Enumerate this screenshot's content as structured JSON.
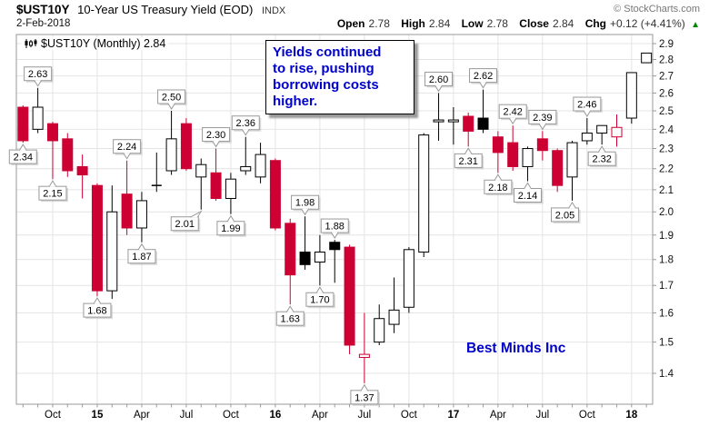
{
  "header": {
    "symbol": "$UST10Y",
    "title": "10-Year US Treasury Yield (EOD)",
    "exchange": "INDX",
    "copyright": "© StockCharts.com",
    "date": "2-Feb-2018",
    "quote": {
      "open_label": "Open",
      "open_value": "2.78",
      "high_label": "High",
      "high_value": "2.84",
      "low_label": "Low",
      "low_value": "2.78",
      "close_label": "Close",
      "close_value": "2.84",
      "chg_label": "Chg",
      "chg_value": "+0.12 (+4.41%)",
      "direction_icon": "▲"
    }
  },
  "legend": {
    "text": "$UST10Y (Monthly) 2.84"
  },
  "annotation": {
    "lines": [
      "Yields continued",
      "to rise, pushing",
      "borrowing costs",
      "higher."
    ]
  },
  "watermark": "Best Minds Inc",
  "colors": {
    "down": "#cc0033",
    "up_border": "#000000",
    "up_fill": "#ffffff",
    "up_filled": "#000000",
    "grid": "#e4e4e4",
    "frame": "#999999",
    "axis_text": "#111111",
    "callout_border": "#999999",
    "annotation_text": "#0000cc",
    "watermark_text": "#0000cc",
    "chg_up": "#008800"
  },
  "chart_data": {
    "type": "candlestick",
    "symbol": "$UST10Y",
    "timeframe": "Monthly",
    "scale": "log",
    "ylim": [
      1.31,
      2.96
    ],
    "y_ticks": [
      2.9,
      2.8,
      2.7,
      2.6,
      2.5,
      2.4,
      2.3,
      2.2,
      2.1,
      2.0,
      1.9,
      1.8,
      1.7,
      1.6,
      1.5,
      1.4
    ],
    "x_labels": [
      {
        "i": 2,
        "text": "Oct",
        "bold": false
      },
      {
        "i": 5,
        "text": "15",
        "bold": true
      },
      {
        "i": 8,
        "text": "Apr",
        "bold": false
      },
      {
        "i": 11,
        "text": "Jul",
        "bold": false
      },
      {
        "i": 14,
        "text": "Oct",
        "bold": false
      },
      {
        "i": 17,
        "text": "16",
        "bold": true
      },
      {
        "i": 20,
        "text": "Apr",
        "bold": false
      },
      {
        "i": 23,
        "text": "Jul",
        "bold": false
      },
      {
        "i": 26,
        "text": "Oct",
        "bold": false
      },
      {
        "i": 29,
        "text": "17",
        "bold": true
      },
      {
        "i": 32,
        "text": "Apr",
        "bold": false
      },
      {
        "i": 35,
        "text": "Jul",
        "bold": false
      },
      {
        "i": 38,
        "text": "Oct",
        "bold": false
      },
      {
        "i": 41,
        "text": "18",
        "bold": true
      }
    ],
    "candles": [
      {
        "month": "Aug 2014",
        "o": 2.52,
        "h": 2.53,
        "l": 2.33,
        "c": 2.34,
        "type": "down",
        "callout": "2.34",
        "side": "below"
      },
      {
        "month": "Sep 2014",
        "o": 2.4,
        "h": 2.63,
        "l": 2.38,
        "c": 2.52,
        "type": "up",
        "callout": "2.63",
        "side": "above"
      },
      {
        "month": "Oct 2014",
        "o": 2.43,
        "h": 2.44,
        "l": 2.15,
        "c": 2.34,
        "type": "down",
        "callout": "2.15",
        "side": "below"
      },
      {
        "month": "Nov 2014",
        "o": 2.35,
        "h": 2.38,
        "l": 2.16,
        "c": 2.19,
        "type": "down"
      },
      {
        "month": "Dec 2014",
        "o": 2.21,
        "h": 2.27,
        "l": 2.06,
        "c": 2.17,
        "type": "down"
      },
      {
        "month": "Jan 2015",
        "o": 2.12,
        "h": 2.13,
        "l": 1.66,
        "c": 1.68,
        "type": "down",
        "callout": "1.68",
        "side": "below"
      },
      {
        "month": "Feb 2015",
        "o": 1.68,
        "h": 2.12,
        "l": 1.65,
        "c": 2.0,
        "type": "up"
      },
      {
        "month": "Mar 2015",
        "o": 2.08,
        "h": 2.24,
        "l": 1.9,
        "c": 1.93,
        "type": "down",
        "callout": "2.24",
        "side": "above"
      },
      {
        "month": "Apr 2015",
        "o": 1.93,
        "h": 2.09,
        "l": 1.87,
        "c": 2.05,
        "type": "up",
        "callout": "1.87",
        "side": "below"
      },
      {
        "month": "May 2015",
        "o": 2.12,
        "h": 2.28,
        "l": 2.09,
        "c": 2.12,
        "type": "up"
      },
      {
        "month": "Jun 2015",
        "o": 2.19,
        "h": 2.5,
        "l": 2.17,
        "c": 2.35,
        "type": "up",
        "callout": "2.50",
        "side": "above"
      },
      {
        "month": "Jul 2015",
        "o": 2.43,
        "h": 2.46,
        "l": 2.19,
        "c": 2.2,
        "type": "down"
      },
      {
        "month": "Aug 2015",
        "o": 2.16,
        "h": 2.25,
        "l": 2.01,
        "c": 2.22,
        "type": "up",
        "callout": "2.01",
        "side": "below",
        "cdx": -18
      },
      {
        "month": "Sep 2015",
        "o": 2.18,
        "h": 2.3,
        "l": 2.05,
        "c": 2.06,
        "type": "down",
        "callout": "2.30",
        "side": "above"
      },
      {
        "month": "Oct 2015",
        "o": 2.06,
        "h": 2.18,
        "l": 1.99,
        "c": 2.15,
        "type": "up",
        "callout": "1.99",
        "side": "below"
      },
      {
        "month": "Nov 2015",
        "o": 2.19,
        "h": 2.36,
        "l": 2.17,
        "c": 2.21,
        "type": "up",
        "callout": "2.36",
        "side": "above"
      },
      {
        "month": "Dec 2015",
        "o": 2.16,
        "h": 2.33,
        "l": 2.13,
        "c": 2.27,
        "type": "up"
      },
      {
        "month": "Jan 2016",
        "o": 2.24,
        "h": 2.25,
        "l": 1.92,
        "c": 1.93,
        "type": "down"
      },
      {
        "month": "Feb 2016",
        "o": 1.95,
        "h": 1.97,
        "l": 1.63,
        "c": 1.74,
        "type": "down",
        "callout": "1.63",
        "side": "below"
      },
      {
        "month": "Mar 2016",
        "o": 1.83,
        "h": 1.98,
        "l": 1.76,
        "c": 1.78,
        "type": "up-filled",
        "callout": "1.98",
        "side": "above"
      },
      {
        "month": "Apr 2016",
        "o": 1.79,
        "h": 1.9,
        "l": 1.7,
        "c": 1.83,
        "type": "up",
        "callout": "1.70",
        "side": "below"
      },
      {
        "month": "May 2016",
        "o": 1.87,
        "h": 1.88,
        "l": 1.71,
        "c": 1.84,
        "type": "up-filled",
        "callout": "1.88",
        "side": "above"
      },
      {
        "month": "Jun 2016",
        "o": 1.85,
        "h": 1.86,
        "l": 1.46,
        "c": 1.49,
        "type": "down"
      },
      {
        "month": "Jul 2016",
        "o": 1.45,
        "h": 1.6,
        "l": 1.37,
        "c": 1.46,
        "type": "down-hollow",
        "callout": "1.37",
        "side": "below"
      },
      {
        "month": "Aug 2016",
        "o": 1.5,
        "h": 1.63,
        "l": 1.49,
        "c": 1.58,
        "type": "up"
      },
      {
        "month": "Sep 2016",
        "o": 1.56,
        "h": 1.73,
        "l": 1.53,
        "c": 1.61,
        "type": "up"
      },
      {
        "month": "Oct 2016",
        "o": 1.62,
        "h": 1.85,
        "l": 1.6,
        "c": 1.84,
        "type": "up"
      },
      {
        "month": "Nov 2016",
        "o": 1.83,
        "h": 2.38,
        "l": 1.81,
        "c": 2.37,
        "type": "up"
      },
      {
        "month": "Dec 2016",
        "o": 2.44,
        "h": 2.6,
        "l": 2.34,
        "c": 2.45,
        "type": "up",
        "callout": "2.60",
        "side": "above"
      },
      {
        "month": "Jan 2017",
        "o": 2.44,
        "h": 2.52,
        "l": 2.32,
        "c": 2.45,
        "type": "up"
      },
      {
        "month": "Feb 2017",
        "o": 2.47,
        "h": 2.49,
        "l": 2.31,
        "c": 2.39,
        "type": "down",
        "callout": "2.31",
        "side": "below"
      },
      {
        "month": "Mar 2017",
        "o": 2.46,
        "h": 2.62,
        "l": 2.38,
        "c": 2.4,
        "type": "up-filled",
        "callout": "2.62",
        "side": "above"
      },
      {
        "month": "Apr 2017",
        "o": 2.36,
        "h": 2.39,
        "l": 2.18,
        "c": 2.28,
        "type": "down",
        "callout": "2.18",
        "side": "below"
      },
      {
        "month": "May 2017",
        "o": 2.33,
        "h": 2.42,
        "l": 2.19,
        "c": 2.21,
        "type": "down",
        "callout": "2.42",
        "side": "above"
      },
      {
        "month": "Jun 2017",
        "o": 2.21,
        "h": 2.31,
        "l": 2.14,
        "c": 2.3,
        "type": "up",
        "callout": "2.14",
        "side": "below"
      },
      {
        "month": "Jul 2017",
        "o": 2.35,
        "h": 2.39,
        "l": 2.24,
        "c": 2.29,
        "type": "down",
        "callout": "2.39",
        "side": "above"
      },
      {
        "month": "Aug 2017",
        "o": 2.29,
        "h": 2.3,
        "l": 2.09,
        "c": 2.12,
        "type": "down"
      },
      {
        "month": "Sep 2017",
        "o": 2.16,
        "h": 2.34,
        "l": 2.05,
        "c": 2.33,
        "type": "up",
        "callout": "2.05",
        "side": "below",
        "cdx": -8
      },
      {
        "month": "Oct 2017",
        "o": 2.34,
        "h": 2.46,
        "l": 2.32,
        "c": 2.38,
        "type": "up",
        "callout": "2.46",
        "side": "above"
      },
      {
        "month": "Nov 2017",
        "o": 2.38,
        "h": 2.42,
        "l": 2.32,
        "c": 2.42,
        "type": "up",
        "callout": "2.32",
        "side": "below"
      },
      {
        "month": "Dec 2017",
        "o": 2.36,
        "h": 2.48,
        "l": 2.31,
        "c": 2.41,
        "type": "down-hollow"
      },
      {
        "month": "Jan 2018",
        "o": 2.46,
        "h": 2.72,
        "l": 2.43,
        "c": 2.72,
        "type": "up"
      },
      {
        "month": "Feb 2018",
        "o": 2.78,
        "h": 2.84,
        "l": 2.78,
        "c": 2.84,
        "type": "up"
      }
    ]
  }
}
